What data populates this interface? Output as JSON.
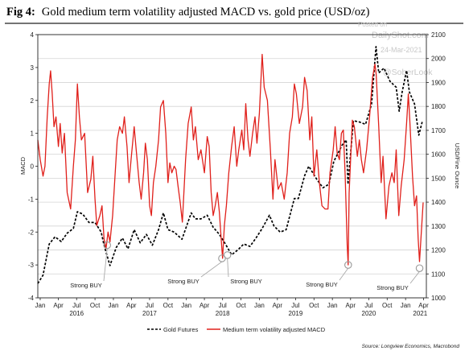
{
  "chart_data": {
    "type": "line",
    "title_prefix": "Fig 4:",
    "title": "Gold medium term volatility adjusted MACD vs. gold price (USD/oz)",
    "ylabel_left": "MACD",
    "ylabel_right": "USD/Fine Ounce",
    "ylim_left": [
      -4,
      4
    ],
    "ylim_right": [
      1000,
      2100
    ],
    "left_ticks": [
      "-4",
      "-3",
      "-2",
      "-1",
      "0",
      "1",
      "2",
      "3",
      "4"
    ],
    "right_ticks": [
      "1000",
      "1100",
      "1200",
      "1300",
      "1400",
      "1500",
      "1600",
      "1700",
      "1800",
      "1900",
      "2000",
      "2100"
    ],
    "x_range": [
      "2015-12-20",
      "2021-04-15"
    ],
    "month_ticks": [
      "Jan",
      "Apr",
      "Jul",
      "Oct",
      "Jan",
      "Apr",
      "Jul",
      "Oct",
      "Jan",
      "Apr",
      "Jul",
      "Oct",
      "Jan",
      "Apr",
      "Jul",
      "Oct",
      "Jan",
      "Apr",
      "Jul",
      "Oct",
      "Jan",
      "Apr"
    ],
    "month_tick_dates": [
      "2016-01-01",
      "2016-04-01",
      "2016-07-01",
      "2016-10-01",
      "2017-01-01",
      "2017-04-01",
      "2017-07-01",
      "2017-10-01",
      "2018-01-01",
      "2018-04-01",
      "2018-07-01",
      "2018-10-01",
      "2019-01-01",
      "2019-04-01",
      "2019-07-01",
      "2019-10-01",
      "2020-01-01",
      "2020-04-01",
      "2020-07-01",
      "2020-10-01",
      "2021-01-01",
      "2021-04-01"
    ],
    "year_labels": [
      "2016",
      "2017",
      "2018",
      "2019",
      "2020",
      "2021"
    ],
    "year_label_dates": [
      "2016-07-01",
      "2017-07-01",
      "2018-07-01",
      "2019-07-01",
      "2020-07-01",
      "2021-03-15"
    ],
    "grid": true,
    "legend_placement": "bottom",
    "series": [
      {
        "name": "Gold Futures",
        "axis": "right",
        "color": "#000000",
        "style": "dashed",
        "points": [
          [
            "2015-12-20",
            1060
          ],
          [
            "2016-01-15",
            1095
          ],
          [
            "2016-02-15",
            1225
          ],
          [
            "2016-03-15",
            1255
          ],
          [
            "2016-04-15",
            1235
          ],
          [
            "2016-05-15",
            1270
          ],
          [
            "2016-06-15",
            1290
          ],
          [
            "2016-07-05",
            1360
          ],
          [
            "2016-08-01",
            1350
          ],
          [
            "2016-09-01",
            1315
          ],
          [
            "2016-10-01",
            1315
          ],
          [
            "2016-11-01",
            1275
          ],
          [
            "2016-11-15",
            1220
          ],
          [
            "2016-12-15",
            1135
          ],
          [
            "2017-01-15",
            1210
          ],
          [
            "2017-02-15",
            1250
          ],
          [
            "2017-03-15",
            1205
          ],
          [
            "2017-04-15",
            1285
          ],
          [
            "2017-05-15",
            1230
          ],
          [
            "2017-06-15",
            1265
          ],
          [
            "2017-07-15",
            1220
          ],
          [
            "2017-08-15",
            1285
          ],
          [
            "2017-09-08",
            1355
          ],
          [
            "2017-10-01",
            1285
          ],
          [
            "2017-11-01",
            1275
          ],
          [
            "2017-12-10",
            1245
          ],
          [
            "2018-01-25",
            1355
          ],
          [
            "2018-02-15",
            1330
          ],
          [
            "2018-03-15",
            1330
          ],
          [
            "2018-04-15",
            1345
          ],
          [
            "2018-05-15",
            1295
          ],
          [
            "2018-06-15",
            1265
          ],
          [
            "2018-07-15",
            1225
          ],
          [
            "2018-08-15",
            1180
          ],
          [
            "2018-09-15",
            1200
          ],
          [
            "2018-10-15",
            1225
          ],
          [
            "2018-11-15",
            1215
          ],
          [
            "2018-12-15",
            1250
          ],
          [
            "2019-01-15",
            1290
          ],
          [
            "2019-02-20",
            1345
          ],
          [
            "2019-03-15",
            1300
          ],
          [
            "2019-04-15",
            1275
          ],
          [
            "2019-05-15",
            1285
          ],
          [
            "2019-06-25",
            1415
          ],
          [
            "2019-07-15",
            1415
          ],
          [
            "2019-08-15",
            1510
          ],
          [
            "2019-09-05",
            1550
          ],
          [
            "2019-10-15",
            1495
          ],
          [
            "2019-11-15",
            1460
          ],
          [
            "2019-12-15",
            1475
          ],
          [
            "2020-01-08",
            1570
          ],
          [
            "2020-02-20",
            1640
          ],
          [
            "2020-03-10",
            1660
          ],
          [
            "2020-03-19",
            1475
          ],
          [
            "2020-04-15",
            1740
          ],
          [
            "2020-05-15",
            1735
          ],
          [
            "2020-06-15",
            1725
          ],
          [
            "2020-07-15",
            1810
          ],
          [
            "2020-08-06",
            2050
          ],
          [
            "2020-08-20",
            1940
          ],
          [
            "2020-09-15",
            1960
          ],
          [
            "2020-10-15",
            1905
          ],
          [
            "2020-11-15",
            1880
          ],
          [
            "2020-11-30",
            1780
          ],
          [
            "2020-12-15",
            1860
          ],
          [
            "2021-01-06",
            1950
          ],
          [
            "2021-01-20",
            1860
          ],
          [
            "2021-02-15",
            1810
          ],
          [
            "2021-03-08",
            1680
          ],
          [
            "2021-03-25",
            1735
          ]
        ]
      },
      {
        "name": "Medium term volatility adjusted MACD",
        "axis": "left",
        "color": "#e0201b",
        "style": "solid",
        "points": [
          [
            "2015-12-20",
            0.8
          ],
          [
            "2016-01-01",
            0.2
          ],
          [
            "2016-01-15",
            -0.3
          ],
          [
            "2016-01-25",
            0.0
          ],
          [
            "2016-02-05",
            1.5
          ],
          [
            "2016-02-15",
            2.5
          ],
          [
            "2016-02-22",
            2.9
          ],
          [
            "2016-03-01",
            2.2
          ],
          [
            "2016-03-10",
            1.2
          ],
          [
            "2016-03-20",
            1.5
          ],
          [
            "2016-04-01",
            0.6
          ],
          [
            "2016-04-10",
            1.3
          ],
          [
            "2016-04-20",
            0.4
          ],
          [
            "2016-05-01",
            1.0
          ],
          [
            "2016-05-15",
            -0.8
          ],
          [
            "2016-06-01",
            -1.3
          ],
          [
            "2016-06-15",
            0.0
          ],
          [
            "2016-06-25",
            0.8
          ],
          [
            "2016-07-05",
            2.5
          ],
          [
            "2016-07-15",
            1.5
          ],
          [
            "2016-07-25",
            0.8
          ],
          [
            "2016-08-10",
            1.0
          ],
          [
            "2016-08-25",
            -0.8
          ],
          [
            "2016-09-10",
            -0.4
          ],
          [
            "2016-09-20",
            0.3
          ],
          [
            "2016-10-01",
            -1.0
          ],
          [
            "2016-10-10",
            -1.8
          ],
          [
            "2016-10-25",
            -1.5
          ],
          [
            "2016-11-05",
            -1.2
          ],
          [
            "2016-11-15",
            -2.2
          ],
          [
            "2016-11-25",
            -2.5
          ],
          [
            "2016-12-05",
            -2.0
          ],
          [
            "2016-12-15",
            -2.3
          ],
          [
            "2016-12-28",
            -1.5
          ],
          [
            "2017-01-10",
            -0.2
          ],
          [
            "2017-01-20",
            0.8
          ],
          [
            "2017-02-01",
            1.2
          ],
          [
            "2017-02-15",
            1.0
          ],
          [
            "2017-02-25",
            1.5
          ],
          [
            "2017-03-10",
            0.6
          ],
          [
            "2017-03-20",
            -0.5
          ],
          [
            "2017-04-01",
            0.3
          ],
          [
            "2017-04-15",
            1.2
          ],
          [
            "2017-04-25",
            0.5
          ],
          [
            "2017-05-10",
            -0.5
          ],
          [
            "2017-05-20",
            -1.0
          ],
          [
            "2017-06-01",
            -0.2
          ],
          [
            "2017-06-10",
            0.7
          ],
          [
            "2017-06-20",
            0.2
          ],
          [
            "2017-07-01",
            -1.2
          ],
          [
            "2017-07-10",
            -1.5
          ],
          [
            "2017-07-20",
            -0.5
          ],
          [
            "2017-08-01",
            0.0
          ],
          [
            "2017-08-15",
            0.8
          ],
          [
            "2017-08-25",
            1.8
          ],
          [
            "2017-09-08",
            2.0
          ],
          [
            "2017-09-20",
            1.0
          ],
          [
            "2017-10-01",
            -0.5
          ],
          [
            "2017-10-10",
            0.1
          ],
          [
            "2017-10-20",
            -0.2
          ],
          [
            "2017-11-01",
            0.0
          ],
          [
            "2017-11-10",
            -0.1
          ],
          [
            "2017-11-20",
            -0.6
          ],
          [
            "2017-12-01",
            -1.1
          ],
          [
            "2017-12-12",
            -1.7
          ],
          [
            "2017-12-28",
            0.2
          ],
          [
            "2018-01-10",
            1.3
          ],
          [
            "2018-01-25",
            1.8
          ],
          [
            "2018-02-05",
            0.8
          ],
          [
            "2018-02-15",
            1.2
          ],
          [
            "2018-03-01",
            0.2
          ],
          [
            "2018-03-15",
            0.5
          ],
          [
            "2018-04-01",
            -0.2
          ],
          [
            "2018-04-15",
            0.9
          ],
          [
            "2018-04-25",
            0.6
          ],
          [
            "2018-05-05",
            -0.8
          ],
          [
            "2018-05-15",
            -1.5
          ],
          [
            "2018-05-25",
            -1.2
          ],
          [
            "2018-06-05",
            -0.8
          ],
          [
            "2018-06-15",
            -1.4
          ],
          [
            "2018-06-25",
            -2.3
          ],
          [
            "2018-07-01",
            -2.8
          ],
          [
            "2018-07-10",
            -1.8
          ],
          [
            "2018-07-20",
            -1.2
          ],
          [
            "2018-08-01",
            -0.2
          ],
          [
            "2018-08-15",
            0.6
          ],
          [
            "2018-08-28",
            1.2
          ],
          [
            "2018-09-10",
            0.0
          ],
          [
            "2018-09-20",
            0.5
          ],
          [
            "2018-10-05",
            1.1
          ],
          [
            "2018-10-15",
            0.5
          ],
          [
            "2018-10-25",
            1.9
          ],
          [
            "2018-11-05",
            0.8
          ],
          [
            "2018-11-15",
            0.3
          ],
          [
            "2018-11-28",
            1.0
          ],
          [
            "2018-12-10",
            1.5
          ],
          [
            "2018-12-20",
            0.7
          ],
          [
            "2019-01-01",
            1.6
          ],
          [
            "2019-01-15",
            3.4
          ],
          [
            "2019-01-25",
            2.4
          ],
          [
            "2019-02-10",
            2.0
          ],
          [
            "2019-02-25",
            0.5
          ],
          [
            "2019-03-10",
            -1.0
          ],
          [
            "2019-03-20",
            0.2
          ],
          [
            "2019-04-05",
            -0.7
          ],
          [
            "2019-04-20",
            -0.5
          ],
          [
            "2019-05-05",
            -1.0
          ],
          [
            "2019-05-20",
            -0.2
          ],
          [
            "2019-06-01",
            1.0
          ],
          [
            "2019-06-15",
            1.5
          ],
          [
            "2019-06-25",
            2.5
          ],
          [
            "2019-07-05",
            2.2
          ],
          [
            "2019-07-20",
            1.3
          ],
          [
            "2019-08-05",
            1.8
          ],
          [
            "2019-08-15",
            2.7
          ],
          [
            "2019-08-28",
            2.3
          ],
          [
            "2019-09-10",
            0.8
          ],
          [
            "2019-09-20",
            1.5
          ],
          [
            "2019-10-01",
            -0.3
          ],
          [
            "2019-10-15",
            0.5
          ],
          [
            "2019-10-28",
            -0.5
          ],
          [
            "2019-11-10",
            -1.2
          ],
          [
            "2019-11-25",
            -1.3
          ],
          [
            "2019-12-10",
            -1.3
          ],
          [
            "2019-12-20",
            -0.2
          ],
          [
            "2020-01-05",
            0.5
          ],
          [
            "2020-01-15",
            1.2
          ],
          [
            "2020-01-25",
            0.4
          ],
          [
            "2020-02-05",
            0.2
          ],
          [
            "2020-02-15",
            1.0
          ],
          [
            "2020-02-25",
            1.1
          ],
          [
            "2020-03-05",
            -0.3
          ],
          [
            "2020-03-15",
            -2.4
          ],
          [
            "2020-03-20",
            -3.0
          ],
          [
            "2020-03-25",
            -0.8
          ],
          [
            "2020-04-10",
            1.4
          ],
          [
            "2020-04-20",
            1.2
          ],
          [
            "2020-05-05",
            0.3
          ],
          [
            "2020-05-15",
            0.8
          ],
          [
            "2020-05-25",
            0.2
          ],
          [
            "2020-06-05",
            -0.2
          ],
          [
            "2020-06-20",
            0.5
          ],
          [
            "2020-07-05",
            1.5
          ],
          [
            "2020-07-20",
            2.7
          ],
          [
            "2020-08-01",
            3.1
          ],
          [
            "2020-08-07",
            2.8
          ],
          [
            "2020-08-20",
            1.2
          ],
          [
            "2020-09-01",
            -0.5
          ],
          [
            "2020-09-10",
            0.3
          ],
          [
            "2020-09-25",
            -1.6
          ],
          [
            "2020-10-10",
            -0.6
          ],
          [
            "2020-10-25",
            -0.2
          ],
          [
            "2020-11-05",
            -0.5
          ],
          [
            "2020-11-15",
            0.5
          ],
          [
            "2020-11-28",
            -1.5
          ],
          [
            "2020-12-10",
            -0.6
          ],
          [
            "2020-12-25",
            0.2
          ],
          [
            "2021-01-06",
            1.3
          ],
          [
            "2021-01-15",
            2.2
          ],
          [
            "2021-01-22",
            1.4
          ],
          [
            "2021-02-05",
            -0.3
          ],
          [
            "2021-02-15",
            -1.2
          ],
          [
            "2021-02-25",
            -0.9
          ],
          [
            "2021-03-05",
            -2.2
          ],
          [
            "2021-03-12",
            -2.9
          ],
          [
            "2021-03-22",
            -1.9
          ],
          [
            "2021-03-30",
            -1.1
          ]
        ]
      }
    ],
    "annotations": [
      {
        "text": "Strong BUY",
        "date": "2016-12-01",
        "value": -2.4
      },
      {
        "text": "Strong BUY",
        "date": "2018-06-28",
        "value": -2.8
      },
      {
        "text": "Strong BUY",
        "date": "2018-07-25",
        "value": -2.7
      },
      {
        "text": "Strong BUY",
        "date": "2020-03-20",
        "value": -3.0
      },
      {
        "text": "Strong BUY",
        "date": "2021-03-12",
        "value": -3.1
      }
    ],
    "source": "Source: Longview Economics, Macrobond",
    "watermark": [
      "Posted on",
      "DailyShot.com",
      "24-Mar-2021",
      "@SoberLook"
    ]
  }
}
